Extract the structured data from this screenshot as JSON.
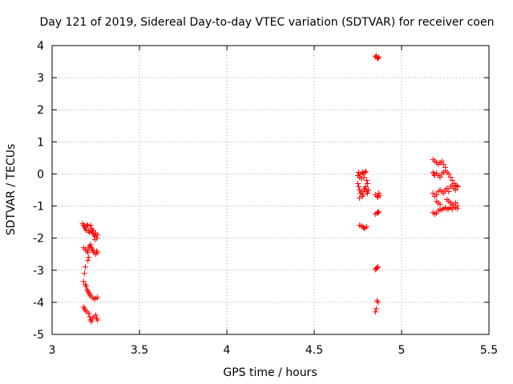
{
  "chart_data": {
    "type": "scatter",
    "title": "Day 121 of 2019, Sidereal Day-to-day VTEC variation (SDTVAR) for receiver coen",
    "xlabel": "GPS time / hours",
    "ylabel": "SDTVAR / TECUs",
    "xlim": [
      3,
      5.5
    ],
    "ylim": [
      -5,
      4
    ],
    "xticks": [
      3,
      3.5,
      4,
      4.5,
      5,
      5.5
    ],
    "xtick_labels": [
      "3",
      "3.5",
      "4",
      "4.5",
      "5",
      "5.5"
    ],
    "yticks": [
      -5,
      -4,
      -3,
      -2,
      -1,
      0,
      1,
      2,
      3,
      4
    ],
    "ytick_labels": [
      "-5",
      "-4",
      "-3",
      "-2",
      "-1",
      "0",
      "1",
      "2",
      "3",
      "4"
    ],
    "grid": true,
    "marker": "+",
    "marker_color": "#ff0000",
    "series": [
      {
        "name": "SDTVAR",
        "points": [
          [
            3.175,
            -1.55
          ],
          [
            3.18,
            -1.6
          ],
          [
            3.185,
            -1.65
          ],
          [
            3.19,
            -1.7
          ],
          [
            3.195,
            -1.75
          ],
          [
            3.2,
            -1.58
          ],
          [
            3.205,
            -1.62
          ],
          [
            3.21,
            -1.78
          ],
          [
            3.215,
            -1.82
          ],
          [
            3.22,
            -1.6
          ],
          [
            3.225,
            -1.7
          ],
          [
            3.23,
            -1.8
          ],
          [
            3.235,
            -1.85
          ],
          [
            3.24,
            -1.9
          ],
          [
            3.245,
            -1.95
          ],
          [
            3.25,
            -1.85
          ],
          [
            3.255,
            -2.0
          ],
          [
            3.26,
            -1.9
          ],
          [
            3.245,
            -2.05
          ],
          [
            3.235,
            -1.75
          ],
          [
            3.18,
            -2.3
          ],
          [
            3.19,
            -2.35
          ],
          [
            3.2,
            -2.4
          ],
          [
            3.205,
            -2.45
          ],
          [
            3.21,
            -2.3
          ],
          [
            3.215,
            -2.25
          ],
          [
            3.22,
            -2.2
          ],
          [
            3.225,
            -2.3
          ],
          [
            3.23,
            -2.35
          ],
          [
            3.235,
            -2.4
          ],
          [
            3.24,
            -2.45
          ],
          [
            3.25,
            -2.5
          ],
          [
            3.26,
            -2.45
          ],
          [
            3.255,
            -2.4
          ],
          [
            3.21,
            -2.6
          ],
          [
            3.205,
            -2.7
          ],
          [
            3.19,
            -2.9
          ],
          [
            3.185,
            -3.1
          ],
          [
            3.18,
            -3.35
          ],
          [
            3.19,
            -3.45
          ],
          [
            3.195,
            -3.5
          ],
          [
            3.2,
            -3.6
          ],
          [
            3.205,
            -3.65
          ],
          [
            3.21,
            -3.7
          ],
          [
            3.215,
            -3.75
          ],
          [
            3.22,
            -3.8
          ],
          [
            3.23,
            -3.85
          ],
          [
            3.24,
            -3.9
          ],
          [
            3.25,
            -3.88
          ],
          [
            3.26,
            -3.85
          ],
          [
            3.18,
            -4.15
          ],
          [
            3.185,
            -4.2
          ],
          [
            3.19,
            -4.25
          ],
          [
            3.2,
            -4.3
          ],
          [
            3.21,
            -4.35
          ],
          [
            3.215,
            -4.45
          ],
          [
            3.22,
            -4.55
          ],
          [
            3.225,
            -4.6
          ],
          [
            3.23,
            -4.5
          ],
          [
            3.24,
            -4.45
          ],
          [
            3.25,
            -4.4
          ],
          [
            3.255,
            -4.5
          ],
          [
            3.26,
            -4.55
          ],
          [
            4.75,
            -0.05
          ],
          [
            4.755,
            0.05
          ],
          [
            4.76,
            -0.1
          ],
          [
            4.765,
            0.0
          ],
          [
            4.77,
            -0.15
          ],
          [
            4.775,
            0.05
          ],
          [
            4.78,
            0.02
          ],
          [
            4.785,
            -0.1
          ],
          [
            4.79,
            0.05
          ],
          [
            4.795,
            0.08
          ],
          [
            4.8,
            -0.2
          ],
          [
            4.805,
            -0.3
          ],
          [
            4.75,
            -0.3
          ],
          [
            4.755,
            -0.4
          ],
          [
            4.76,
            -0.5
          ],
          [
            4.765,
            -0.6
          ],
          [
            4.77,
            -0.55
          ],
          [
            4.775,
            -0.7
          ],
          [
            4.78,
            -0.65
          ],
          [
            4.785,
            -0.5
          ],
          [
            4.79,
            -0.45
          ],
          [
            4.795,
            -0.4
          ],
          [
            4.8,
            -0.55
          ],
          [
            4.805,
            -0.6
          ],
          [
            4.81,
            -0.5
          ],
          [
            4.76,
            -0.75
          ],
          [
            4.76,
            -1.6
          ],
          [
            4.77,
            -1.62
          ],
          [
            4.78,
            -1.65
          ],
          [
            4.785,
            -1.7
          ],
          [
            4.79,
            -1.68
          ],
          [
            4.8,
            -1.65
          ],
          [
            4.85,
            -0.65
          ],
          [
            4.86,
            -0.7
          ],
          [
            4.865,
            -0.72
          ],
          [
            4.87,
            -0.6
          ],
          [
            4.875,
            -0.68
          ],
          [
            4.85,
            -1.25
          ],
          [
            4.86,
            -1.22
          ],
          [
            4.865,
            -1.2
          ],
          [
            4.87,
            -1.18
          ],
          [
            4.85,
            -2.98
          ],
          [
            4.855,
            -2.95
          ],
          [
            4.86,
            -2.92
          ],
          [
            4.865,
            -2.9
          ],
          [
            4.86,
            -3.95
          ],
          [
            4.865,
            -4.0
          ],
          [
            4.855,
            -4.2
          ],
          [
            4.85,
            -4.3
          ],
          [
            4.85,
            3.65
          ],
          [
            4.855,
            3.68
          ],
          [
            4.86,
            3.62
          ],
          [
            4.865,
            3.6
          ],
          [
            4.87,
            3.64
          ],
          [
            5.18,
            0.45
          ],
          [
            5.19,
            0.4
          ],
          [
            5.2,
            0.35
          ],
          [
            5.21,
            0.3
          ],
          [
            5.22,
            0.35
          ],
          [
            5.23,
            0.4
          ],
          [
            5.24,
            0.3
          ],
          [
            5.25,
            0.2
          ],
          [
            5.18,
            0.05
          ],
          [
            5.185,
            0.0
          ],
          [
            5.19,
            -0.05
          ],
          [
            5.2,
            0.02
          ],
          [
            5.21,
            -0.05
          ],
          [
            5.22,
            -0.1
          ],
          [
            5.23,
            0.0
          ],
          [
            5.24,
            0.05
          ],
          [
            5.25,
            0.1
          ],
          [
            5.26,
            0.05
          ],
          [
            5.27,
            0.0
          ],
          [
            5.28,
            -0.1
          ],
          [
            5.29,
            -0.2
          ],
          [
            5.3,
            -0.3
          ],
          [
            5.31,
            -0.35
          ],
          [
            5.32,
            -0.4
          ],
          [
            5.18,
            -0.6
          ],
          [
            5.19,
            -0.7
          ],
          [
            5.2,
            -0.65
          ],
          [
            5.21,
            -0.55
          ],
          [
            5.22,
            -0.5
          ],
          [
            5.23,
            -0.55
          ],
          [
            5.24,
            -0.6
          ],
          [
            5.25,
            -0.5
          ],
          [
            5.26,
            -0.45
          ],
          [
            5.27,
            -0.55
          ],
          [
            5.28,
            -0.4
          ],
          [
            5.29,
            -0.35
          ],
          [
            5.3,
            -0.45
          ],
          [
            5.31,
            -0.5
          ],
          [
            5.32,
            -0.38
          ],
          [
            5.2,
            -0.85
          ],
          [
            5.21,
            -0.9
          ],
          [
            5.22,
            -0.95
          ],
          [
            5.26,
            -0.8
          ],
          [
            5.27,
            -0.85
          ],
          [
            5.28,
            -0.9
          ],
          [
            5.29,
            -0.95
          ],
          [
            5.3,
            -1.0
          ],
          [
            5.31,
            -0.9
          ],
          [
            5.32,
            -1.0
          ],
          [
            5.18,
            -1.2
          ],
          [
            5.19,
            -1.25
          ],
          [
            5.2,
            -1.22
          ],
          [
            5.21,
            -1.15
          ],
          [
            5.22,
            -1.1
          ],
          [
            5.23,
            -1.12
          ],
          [
            5.24,
            -1.08
          ],
          [
            5.25,
            -1.05
          ],
          [
            5.26,
            -1.1
          ],
          [
            5.27,
            -1.08
          ],
          [
            5.28,
            -1.05
          ],
          [
            5.29,
            -1.1
          ],
          [
            5.3,
            -1.0
          ],
          [
            5.31,
            -1.05
          ],
          [
            5.32,
            -1.08
          ]
        ]
      }
    ]
  },
  "colors": {
    "background": "#ffffff",
    "axis": "#000000",
    "grid": "#a0a0a0",
    "marker": "#ff0000"
  }
}
